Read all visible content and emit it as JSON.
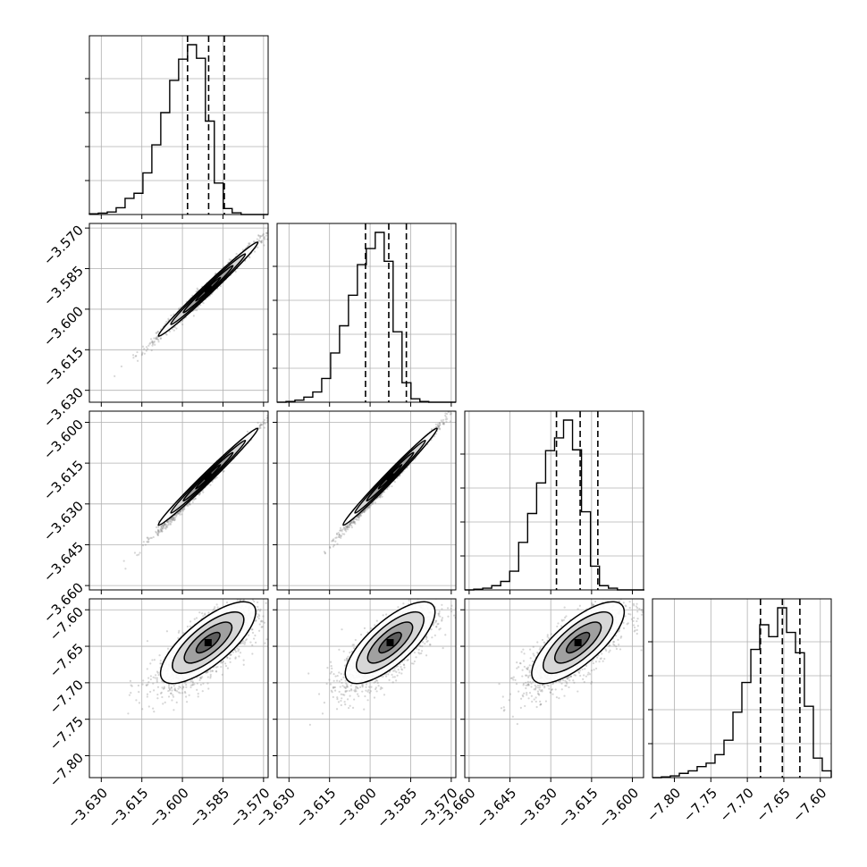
{
  "chart_data": {
    "type": "corner",
    "title": "",
    "parameters": [
      {
        "ticks": [
          -3.63,
          -3.615,
          -3.6,
          -3.585,
          -3.57
        ],
        "tick_labels": [
          "−3.630",
          "−3.615",
          "−3.600",
          "−3.585",
          "−3.570"
        ],
        "range": [
          -3.6344,
          -3.5683
        ]
      },
      {
        "ticks": [
          -3.63,
          -3.615,
          -3.6,
          -3.585,
          -3.57
        ],
        "tick_labels": [
          "−3.630",
          "−3.615",
          "−3.600",
          "−3.585",
          "−3.570"
        ],
        "range": [
          -3.6344,
          -3.5683
        ]
      },
      {
        "ticks": [
          -3.66,
          -3.645,
          -3.63,
          -3.615,
          -3.6
        ],
        "tick_labels": [
          "−3.660",
          "−3.645",
          "−3.630",
          "−3.615",
          "−3.600"
        ],
        "range": [
          -3.6616,
          -3.5959
        ]
      },
      {
        "ticks": [
          -7.8,
          -7.75,
          -7.7,
          -7.65,
          -7.6
        ],
        "tick_labels": [
          "−7.80",
          "−7.75",
          "−7.70",
          "−7.65",
          "−7.60"
        ],
        "range": [
          -7.83,
          -7.585
        ]
      }
    ],
    "histograms": [
      {
        "bin_edges": [
          -3.6344,
          -3.6311,
          -3.6278,
          -3.6245,
          -3.6212,
          -3.6179,
          -3.6146,
          -3.6113,
          -3.608,
          -3.6047,
          -3.6014,
          -3.5981,
          -3.5948,
          -3.5915,
          -3.5882,
          -3.5849,
          -3.5816,
          -3.5783,
          -3.575,
          -3.5717,
          -3.5684
        ],
        "counts": [
          0.004,
          0.008,
          0.015,
          0.04,
          0.095,
          0.125,
          0.245,
          0.41,
          0.6,
          0.79,
          0.915,
          1.0,
          0.92,
          0.55,
          0.185,
          0.035,
          0.01,
          0.0,
          0.0,
          0.0
        ],
        "quantiles": [
          -3.5981,
          -3.5903,
          -3.5845
        ]
      },
      {
        "bin_edges": [
          -3.6344,
          -3.6311,
          -3.6278,
          -3.6245,
          -3.6212,
          -3.6179,
          -3.6146,
          -3.6113,
          -3.608,
          -3.6047,
          -3.6014,
          -3.5981,
          -3.5948,
          -3.5915,
          -3.5882,
          -3.5849,
          -3.5816,
          -3.5783,
          -3.575,
          -3.5717,
          -3.5684
        ],
        "counts": [
          0.0,
          0.004,
          0.012,
          0.03,
          0.06,
          0.14,
          0.29,
          0.45,
          0.63,
          0.81,
          0.905,
          1.0,
          0.83,
          0.415,
          0.115,
          0.02,
          0.004,
          0.0,
          0.0,
          0.0
        ],
        "quantiles": [
          -3.6017,
          -3.5931,
          -3.5866
        ]
      },
      {
        "bin_edges": [
          -3.6616,
          -3.6583,
          -3.655,
          -3.6517,
          -3.6484,
          -3.6451,
          -3.6418,
          -3.6385,
          -3.6352,
          -3.6319,
          -3.6286,
          -3.6253,
          -3.622,
          -3.6187,
          -3.6154,
          -3.6121,
          -3.6088,
          -3.6055,
          -3.6022,
          -3.5989,
          -3.5956
        ],
        "counts": [
          0.0,
          0.004,
          0.01,
          0.025,
          0.05,
          0.11,
          0.28,
          0.45,
          0.63,
          0.82,
          0.895,
          1.0,
          0.825,
          0.46,
          0.14,
          0.025,
          0.01,
          0.0,
          0.0,
          0.0
        ],
        "quantiles": [
          -3.6279,
          -3.6192,
          -3.6127
        ]
      },
      {
        "bin_edges": [
          -7.83,
          -7.8178,
          -7.8055,
          -7.7932,
          -7.781,
          -7.7688,
          -7.7565,
          -7.7443,
          -7.732,
          -7.7197,
          -7.7075,
          -7.6952,
          -7.683,
          -7.6707,
          -7.6585,
          -7.6462,
          -7.634,
          -7.6218,
          -7.6095,
          -7.5973,
          -7.585
        ],
        "counts": [
          0.0,
          0.004,
          0.01,
          0.025,
          0.04,
          0.065,
          0.085,
          0.135,
          0.22,
          0.385,
          0.56,
          0.755,
          0.9,
          0.83,
          1.0,
          0.855,
          0.735,
          0.42,
          0.115,
          0.04
        ],
        "quantiles": [
          -7.682,
          -7.652,
          -7.628
        ]
      }
    ],
    "pairs": [
      {
        "row": 1,
        "col": 0,
        "scatter": {
          "center": [
            -3.5905,
            -3.5926
          ],
          "spread": [
            0.0092,
            0.0087
          ],
          "rho": 0.99
        },
        "contour": {
          "center": [
            -3.5905,
            -3.5926
          ],
          "spread": [
            0.0092,
            0.0087
          ],
          "rho": 0.99
        }
      },
      {
        "row": 2,
        "col": 0,
        "scatter": {
          "center": [
            -3.5905,
            -3.621
          ],
          "spread": [
            0.0092,
            0.0095
          ],
          "rho": 0.995
        },
        "contour": {
          "center": [
            -3.5905,
            -3.62
          ],
          "spread": [
            0.0092,
            0.0089
          ],
          "rho": 0.99
        }
      },
      {
        "row": 2,
        "col": 1,
        "scatter": {
          "center": [
            -3.5926,
            -3.621
          ],
          "spread": [
            0.0087,
            0.0095
          ],
          "rho": 0.995
        },
        "contour": {
          "center": [
            -3.5926,
            -3.62
          ],
          "spread": [
            0.0087,
            0.0089
          ],
          "rho": 0.99
        }
      },
      {
        "row": 3,
        "col": 0,
        "scatter": {
          "center": [
            -3.591,
            -7.653
          ],
          "spread": [
            0.0093,
            0.03
          ],
          "rho": 0.75
        },
        "contour": {
          "center": [
            -3.5905,
            -7.645
          ],
          "spread": [
            0.0088,
            0.028
          ],
          "rho": 0.75
        }
      },
      {
        "row": 3,
        "col": 1,
        "scatter": {
          "center": [
            -3.593,
            -7.653
          ],
          "spread": [
            0.0088,
            0.03
          ],
          "rho": 0.75
        },
        "contour": {
          "center": [
            -3.5926,
            -7.645
          ],
          "spread": [
            0.0083,
            0.028
          ],
          "rho": 0.75
        }
      },
      {
        "row": 3,
        "col": 2,
        "scatter": {
          "center": [
            -3.621,
            -7.653
          ],
          "spread": [
            0.0095,
            0.03
          ],
          "rho": 0.75
        },
        "contour": {
          "center": [
            -3.62,
            -7.645
          ],
          "spread": [
            0.0085,
            0.028
          ],
          "rho": 0.75
        }
      }
    ],
    "contour_levels": [
      0.5,
      1.0,
      1.5,
      2.0
    ],
    "grid": true,
    "colors": {
      "frame": "#000000",
      "grid": "#b0b0b0",
      "scatter": "#8a8a8a",
      "contour_fill": [
        "#ffffff",
        "#d2d2d2",
        "#9a9a9a",
        "#585858",
        "#000000"
      ]
    }
  }
}
